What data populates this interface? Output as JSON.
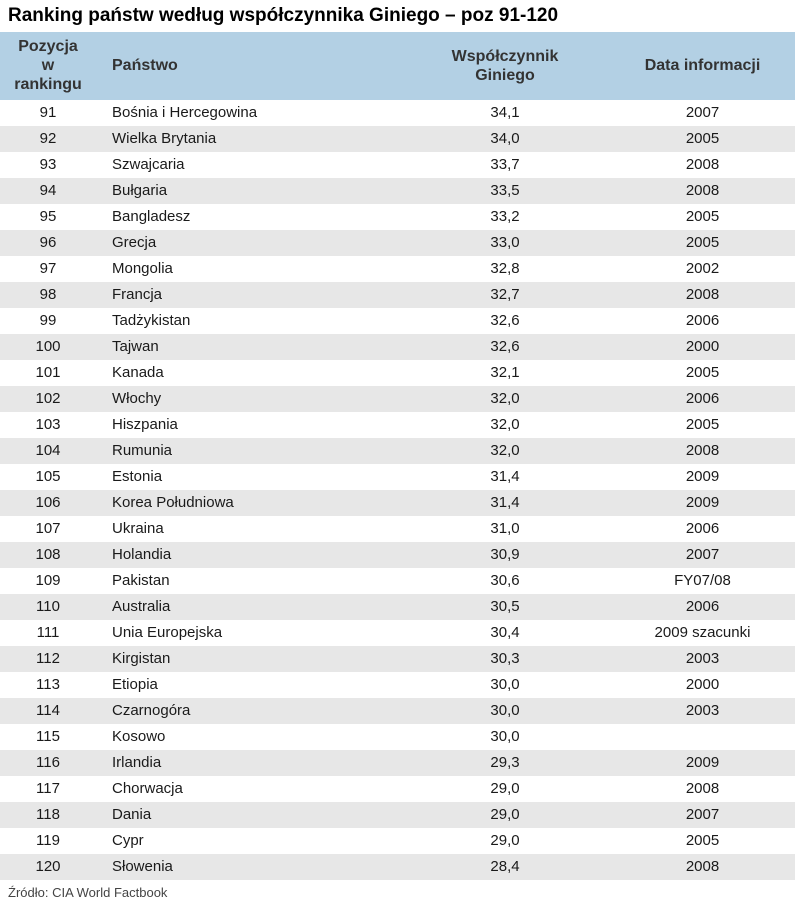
{
  "page": {
    "title": "Ranking państw według współczynnika Giniego – poz 91-120",
    "source": "Źródło: CIA World Factbook"
  },
  "chart_data": {
    "type": "table",
    "title": "Ranking państw według współczynnika Giniego – poz 91-120",
    "columns": [
      "Pozycja w rankingu",
      "Państwo",
      "Współczynnik Giniego",
      "Data informacji"
    ],
    "rows": [
      [
        "91",
        "Bośnia i Hercegowina",
        "34,1",
        "2007"
      ],
      [
        "92",
        "Wielka Brytania",
        "34,0",
        "2005"
      ],
      [
        "93",
        "Szwajcaria",
        "33,7",
        "2008"
      ],
      [
        "94",
        "Bułgaria",
        "33,5",
        "2008"
      ],
      [
        "95",
        "Bangladesz",
        "33,2",
        "2005"
      ],
      [
        "96",
        "Grecja",
        "33,0",
        "2005"
      ],
      [
        "97",
        "Mongolia",
        "32,8",
        "2002"
      ],
      [
        "98",
        "Francja",
        "32,7",
        "2008"
      ],
      [
        "99",
        "Tadżykistan",
        "32,6",
        "2006"
      ],
      [
        "100",
        "Tajwan",
        "32,6",
        "2000"
      ],
      [
        "101",
        "Kanada",
        "32,1",
        "2005"
      ],
      [
        "102",
        "Włochy",
        "32,0",
        "2006"
      ],
      [
        "103",
        "Hiszpania",
        "32,0",
        "2005"
      ],
      [
        "104",
        "Rumunia",
        "32,0",
        "2008"
      ],
      [
        "105",
        "Estonia",
        "31,4",
        "2009"
      ],
      [
        "106",
        "Korea Południowa",
        "31,4",
        "2009"
      ],
      [
        "107",
        "Ukraina",
        "31,0",
        "2006"
      ],
      [
        "108",
        "Holandia",
        "30,9",
        "2007"
      ],
      [
        "109",
        "Pakistan",
        "30,6",
        "FY07/08"
      ],
      [
        "110",
        "Australia",
        "30,5",
        "2006"
      ],
      [
        "111",
        "Unia Europejska",
        "30,4",
        "2009 szacunki"
      ],
      [
        "112",
        "Kirgistan",
        "30,3",
        "2003"
      ],
      [
        "113",
        "Etiopia",
        "30,0",
        "2000"
      ],
      [
        "114",
        "Czarnogóra",
        "30,0",
        "2003"
      ],
      [
        "115",
        "Kosowo",
        "30,0",
        ""
      ],
      [
        "116",
        "Irlandia",
        "29,3",
        "2009"
      ],
      [
        "117",
        "Chorwacja",
        "29,0",
        "2008"
      ],
      [
        "118",
        "Dania",
        "29,0",
        "2007"
      ],
      [
        "119",
        "Cypr",
        "29,0",
        "2005"
      ],
      [
        "120",
        "Słowenia",
        "28,4",
        "2008"
      ]
    ],
    "source": "Źródło: CIA World Factbook",
    "layout": {
      "zebra_striping": true,
      "first_row_bg": "white"
    },
    "colors": {
      "header_bg": "#b3d0e4",
      "header_text": "#333333",
      "row_alt_bg": "#e7e7e7",
      "row_bg": "#ffffff"
    }
  }
}
